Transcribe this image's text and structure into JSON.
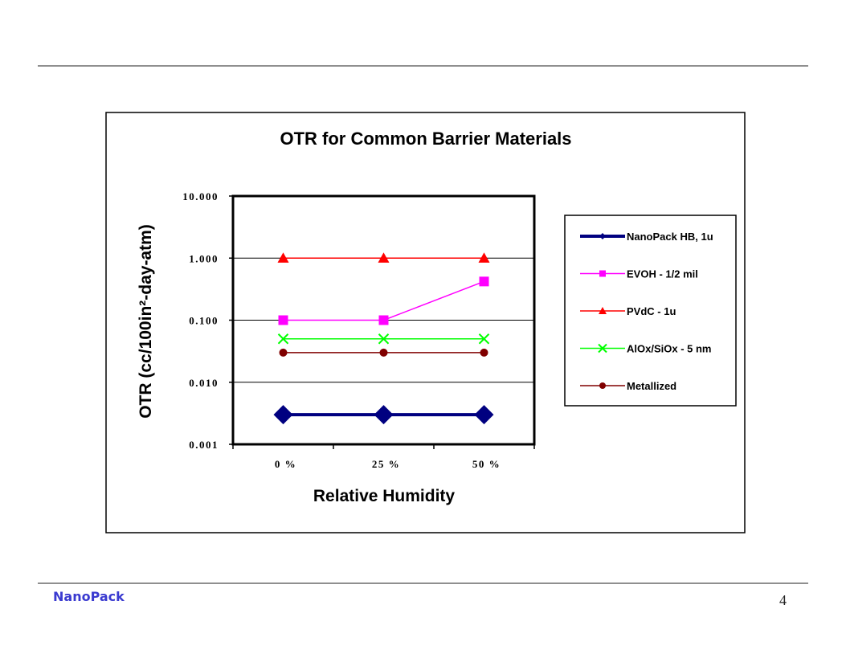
{
  "footer": {
    "brand": "NanoPack",
    "page_number": "4"
  },
  "chart_data": {
    "type": "line",
    "title": "OTR for Common Barrier Materials",
    "xlabel": "Relative Humidity",
    "ylabel": "OTR (cc/100in²-day-atm)",
    "categories": [
      "0 %",
      "25 %",
      "50 %"
    ],
    "y_scale": "log",
    "ylim": [
      0.001,
      10
    ],
    "y_ticks": [
      {
        "value": 10,
        "label": "10.000"
      },
      {
        "value": 1,
        "label": "1.000"
      },
      {
        "value": 0.1,
        "label": "0.100"
      },
      {
        "value": 0.01,
        "label": "0.010"
      },
      {
        "value": 0.001,
        "label": "0.001"
      }
    ],
    "grid": "horizontal major",
    "legend_position": "right",
    "series": [
      {
        "name": "NanoPack HB, 1u",
        "values": [
          0.003,
          0.003,
          0.003
        ],
        "color": "#000080",
        "marker": "diamond"
      },
      {
        "name": "EVOH - 1/2 mil",
        "values": [
          0.1,
          0.1,
          0.42
        ],
        "color": "#ff00ff",
        "marker": "square"
      },
      {
        "name": "PVdC - 1u",
        "values": [
          1,
          1,
          1
        ],
        "color": "#ff0000",
        "marker": "triangle"
      },
      {
        "name": "AlOx/SiOx - 5 nm",
        "values": [
          0.05,
          0.05,
          0.05
        ],
        "color": "#00ff00",
        "marker": "x"
      },
      {
        "name": "Metallized",
        "values": [
          0.03,
          0.03,
          0.03
        ],
        "color": "#800000",
        "marker": "circle"
      }
    ]
  }
}
